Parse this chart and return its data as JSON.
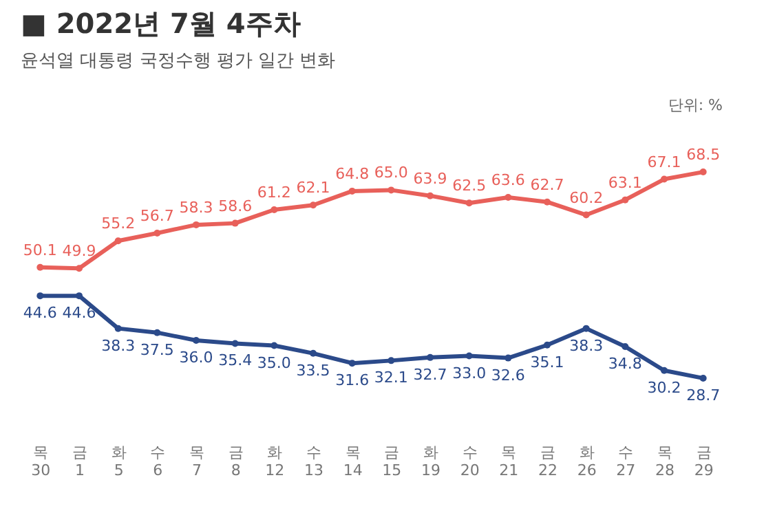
{
  "chart_data": {
    "type": "line",
    "title": "■ 2022년 7월 4주차",
    "subtitle": "윤석열 대통령 국정수행 평가 일간 변화",
    "annotations": [
      "단위: %"
    ],
    "categories": [
      "목\n30",
      "금\n1",
      "화\n5",
      "수\n6",
      "목\n7",
      "금\n8",
      "화\n12",
      "수\n13",
      "목\n14",
      "금\n15",
      "화\n19",
      "수\n20",
      "목\n21",
      "금\n22",
      "화\n26",
      "수\n27",
      "목\n28",
      "금\n29"
    ],
    "series": [
      {
        "color": "#e8605a",
        "values": [
          50.1,
          49.9,
          55.2,
          56.7,
          58.3,
          58.6,
          61.2,
          62.1,
          64.8,
          65.0,
          63.9,
          62.5,
          63.6,
          62.7,
          60.2,
          63.1,
          67.1,
          68.5
        ],
        "value_labels": [
          "50.1",
          "49.9",
          "55.2",
          "56.7",
          "58.3",
          "58.6",
          "61.2",
          "62.1",
          "64.8",
          "65.0",
          "63.9",
          "62.5",
          "63.6",
          "62.7",
          "60.2",
          "63.1",
          "67.1",
          "68.5"
        ]
      },
      {
        "color": "#2b4a8a",
        "values": [
          44.6,
          44.6,
          38.3,
          37.5,
          36.0,
          35.4,
          35.0,
          33.5,
          31.6,
          32.1,
          32.7,
          33.0,
          32.6,
          35.1,
          38.3,
          34.8,
          30.2,
          28.7
        ],
        "value_labels": [
          "44.6",
          "44.6",
          "38.3",
          "37.5",
          "36.0",
          "35.4",
          "35.0",
          "33.5",
          "31.6",
          "32.1",
          "32.7",
          "33.0",
          "32.6",
          "35.1",
          "38.3",
          "34.8",
          "30.2",
          "28.7"
        ]
      }
    ],
    "tick_labels": "x",
    "grid": false,
    "marker": "circle",
    "line_style": "solid"
  }
}
